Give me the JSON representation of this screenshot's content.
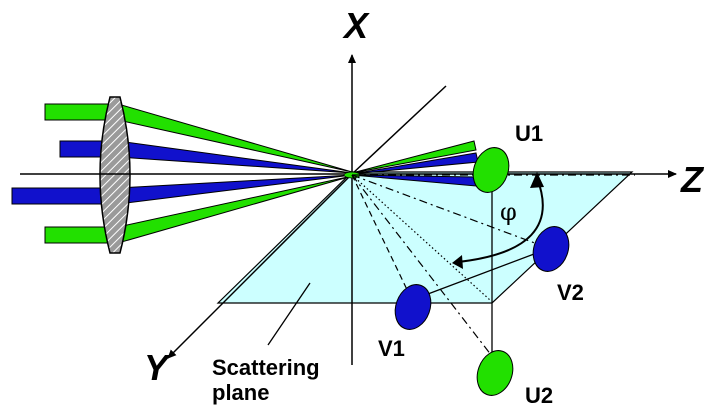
{
  "axes": {
    "x": "X",
    "y": "Y",
    "z": "Z"
  },
  "detectors": {
    "u1": "U1",
    "u2": "U2",
    "v1": "V1",
    "v2": "V2"
  },
  "angle": "φ",
  "plane_label": {
    "line1": "Scattering",
    "line2": "plane"
  },
  "colors": {
    "green": "#22e000",
    "blue": "#1111cc",
    "plane": "#ccffff",
    "lens": "#999999"
  }
}
